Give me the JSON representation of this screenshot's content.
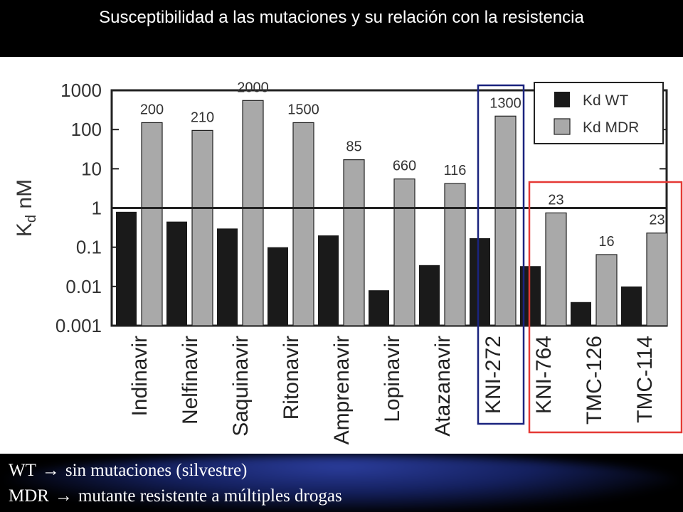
{
  "header": {
    "title": "Susceptibilidad a las mutaciones y su relación con la resistencia"
  },
  "footer": {
    "line1": {
      "term": "WT",
      "arrow": "→",
      "text": "sin mutaciones (silvestre)"
    },
    "line2": {
      "term": "MDR",
      "arrow": "→",
      "text": "mutante resistente a múltiples drogas"
    }
  },
  "colors": {
    "wt_bar": "#1a1a1a",
    "mdr_bar": "#a9a9a9",
    "highlight_blue": "#1a237e",
    "highlight_red": "#e53935"
  },
  "chart_data": {
    "type": "bar",
    "ylabel_main": "K",
    "ylabel_sub": "d",
    "ylabel_unit": "nM",
    "yscale": "log",
    "ylim": [
      0.001,
      1000
    ],
    "yticks": [
      {
        "value": 1000,
        "label": "1000"
      },
      {
        "value": 100,
        "label": "100"
      },
      {
        "value": 10,
        "label": "10"
      },
      {
        "value": 1,
        "label": "1"
      },
      {
        "value": 0.1,
        "label": "0.1"
      },
      {
        "value": 0.01,
        "label": "0.01"
      },
      {
        "value": 0.001,
        "label": "0.001"
      }
    ],
    "reference_line": 1,
    "legend_position": "top-right",
    "categories": [
      "Indinavir",
      "Nelfinavir",
      "Saquinavir",
      "Ritonavir",
      "Amprenavir",
      "Lopinavir",
      "Atazanavir",
      "KNI-272",
      "KNI-764",
      "TMC-126",
      "TMC-114"
    ],
    "series": [
      {
        "name": "Kd WT",
        "values": [
          0.8,
          0.45,
          0.3,
          0.1,
          0.2,
          0.008,
          0.035,
          0.17,
          0.033,
          0.004,
          0.01
        ]
      },
      {
        "name": "Kd MDR",
        "values": [
          150,
          95,
          550,
          150,
          17,
          5.5,
          4.2,
          220,
          0.75,
          0.065,
          0.23
        ]
      }
    ],
    "bar_labels": [
      "200",
      "210",
      "2000",
      "1500",
      "85",
      "660",
      "116",
      "1300",
      "23",
      "16",
      "23"
    ],
    "highlight_boxes": [
      {
        "categories": [
          "KNI-272"
        ],
        "color": "blue"
      },
      {
        "categories": [
          "KNI-764",
          "TMC-126",
          "TMC-114"
        ],
        "color": "red"
      }
    ]
  }
}
